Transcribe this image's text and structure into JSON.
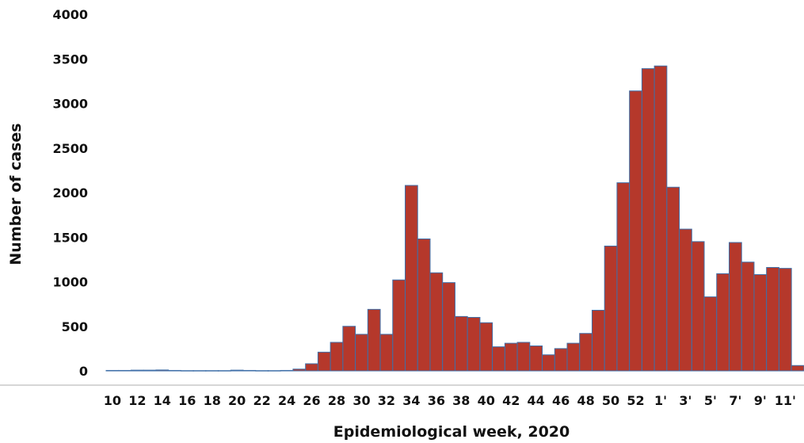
{
  "chart_data": {
    "type": "bar",
    "xlabel": "Epidemiological week, 2020",
    "ylabel": "Number of cases",
    "ylim": [
      0,
      4000
    ],
    "yticks": [
      "0",
      "500",
      "1000",
      "1500",
      "2000",
      "2500",
      "3000",
      "3500",
      "4000"
    ],
    "grid": false,
    "legend": "none",
    "categories": [
      "10",
      "11",
      "12",
      "13",
      "14",
      "15",
      "16",
      "17",
      "18",
      "19",
      "20",
      "21",
      "22",
      "23",
      "24",
      "25",
      "26",
      "27",
      "28",
      "29",
      "30",
      "31",
      "32",
      "33",
      "34",
      "35",
      "36",
      "37",
      "38",
      "39",
      "40",
      "41",
      "42",
      "43",
      "44",
      "45",
      "46",
      "47",
      "48",
      "49",
      "50",
      "51",
      "52",
      "53",
      "1'",
      "2'",
      "3'",
      "4'",
      "5'",
      "6'",
      "7'",
      "8'",
      "9'",
      "10'",
      "11'",
      "12'"
    ],
    "tick_labels": [
      "10",
      "12",
      "14",
      "16",
      "18",
      "20",
      "22",
      "24",
      "26",
      "28",
      "30",
      "32",
      "34",
      "36",
      "38",
      "40",
      "42",
      "44",
      "46",
      "48",
      "50",
      "52",
      "1'",
      "3'",
      "5'",
      "7'",
      "9'",
      "11'"
    ],
    "values": [
      5,
      5,
      8,
      8,
      10,
      5,
      3,
      3,
      3,
      3,
      8,
      5,
      3,
      3,
      5,
      20,
      80,
      210,
      320,
      500,
      410,
      690,
      410,
      1020,
      2080,
      1480,
      1100,
      990,
      610,
      600,
      540,
      270,
      310,
      320,
      280,
      180,
      250,
      310,
      420,
      680,
      1400,
      2110,
      3140,
      3390,
      3420,
      2060,
      1590,
      1450,
      830,
      1090,
      1440,
      1220,
      1080,
      1160,
      1150,
      60
    ],
    "colors": {
      "bar_fill": "#b5382b",
      "bar_edge": "#3f6fa8",
      "baseline": "#c8c8c8"
    }
  }
}
